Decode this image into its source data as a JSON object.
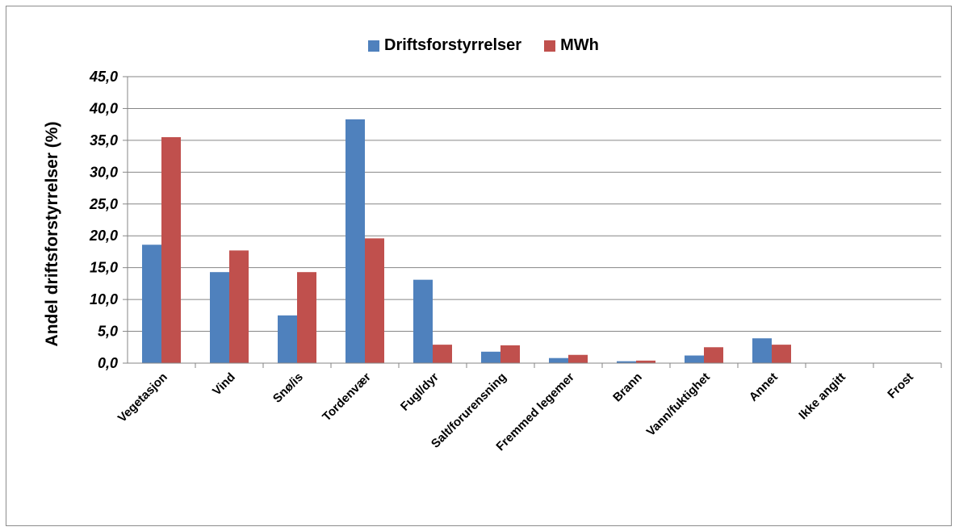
{
  "chart_data": {
    "type": "bar",
    "ylabel": "Andel driftsforstyrrelser (%)",
    "xlabel": "",
    "ylim": [
      0,
      45
    ],
    "yticks": [
      "0,0",
      "5,0",
      "10,0",
      "15,0",
      "20,0",
      "25,0",
      "30,0",
      "35,0",
      "40,0",
      "45,0"
    ],
    "grid": true,
    "legend_position": "top-center",
    "categories": [
      "Vegetasjon",
      "Vind",
      "Snø/is",
      "Tordenvær",
      "Fugl/dyr",
      "Salt/forurensning",
      "Fremmed legemer",
      "Brann",
      "Vann/fuktighet",
      "Annet",
      "Ikke angitt",
      "Frost"
    ],
    "series": [
      {
        "name": "Driftsforstyrrelser",
        "color": "#4f81bd",
        "values": [
          18.6,
          14.3,
          7.5,
          38.3,
          13.1,
          1.8,
          0.8,
          0.3,
          1.2,
          3.9,
          0.0,
          0.0
        ]
      },
      {
        "name": "MWh",
        "color": "#c0504d",
        "values": [
          35.5,
          17.7,
          14.3,
          19.6,
          2.9,
          2.8,
          1.3,
          0.4,
          2.5,
          2.9,
          0.0,
          0.0
        ]
      }
    ]
  }
}
